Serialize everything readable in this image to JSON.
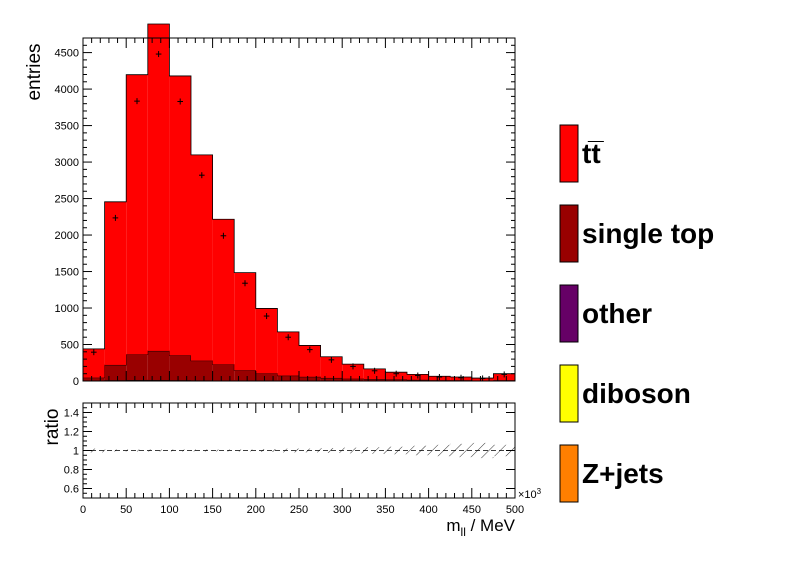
{
  "chart_data": [
    {
      "type": "bar",
      "subtype": "stacked-histogram",
      "ylabel": "entries",
      "xlim": [
        0,
        500
      ],
      "ylim": [
        0,
        4700
      ],
      "bin_edges": [
        0,
        25,
        50,
        75,
        100,
        125,
        150,
        175,
        200,
        225,
        250,
        275,
        300,
        325,
        350,
        375,
        400,
        425,
        450,
        475,
        500
      ],
      "x_ticks": [
        "0",
        "50",
        "100",
        "150",
        "200",
        "250",
        "300",
        "350",
        "400",
        "450",
        "500"
      ],
      "y_ticks": [
        0,
        500,
        1000,
        1500,
        2000,
        2500,
        3000,
        3500,
        4000,
        4500
      ],
      "series": [
        {
          "name": "Z+jets",
          "color": "#ff7f00",
          "values": [
            0,
            0,
            0,
            0,
            0,
            0,
            0,
            0,
            0,
            0,
            0,
            0,
            0,
            0,
            0,
            0,
            0,
            0,
            0,
            0
          ]
        },
        {
          "name": "diboson",
          "color": "#ffff00",
          "values": [
            0,
            0,
            0,
            0,
            0,
            0,
            0,
            0,
            0,
            0,
            0,
            0,
            0,
            0,
            0,
            0,
            0,
            0,
            0,
            0
          ]
        },
        {
          "name": "other",
          "color": "#660066",
          "values": [
            5,
            10,
            12,
            12,
            10,
            8,
            6,
            5,
            4,
            3,
            2,
            2,
            1,
            1,
            1,
            1,
            0,
            0,
            0,
            0
          ]
        },
        {
          "name": "single top",
          "color": "#990000",
          "values": [
            40,
            210,
            350,
            400,
            340,
            270,
            220,
            140,
            100,
            70,
            55,
            40,
            30,
            25,
            20,
            15,
            10,
            10,
            5,
            10
          ]
        },
        {
          "name": "tt̅",
          "color": "#ff0000",
          "values": [
            395,
            2235,
            3835,
            4480,
            3830,
            2820,
            1990,
            1340,
            890,
            600,
            430,
            290,
            200,
            140,
            100,
            75,
            55,
            45,
            35,
            90
          ]
        }
      ],
      "data_points": [
        395,
        2235,
        3835,
        4480,
        3830,
        2820,
        1990,
        1340,
        890,
        600,
        430,
        290,
        200,
        140,
        100,
        75,
        55,
        45,
        35,
        90
      ]
    },
    {
      "type": "line",
      "subtype": "ratio",
      "ylabel": "ratio",
      "xlabel": "m",
      "xlabel_sub": "ll",
      "xlabel_unit": " / MeV",
      "x_exponent": "×10",
      "x_exponent_power": "3",
      "xlim": [
        0,
        500
      ],
      "ylim": [
        0.5,
        1.5
      ],
      "y_ticks": [
        "0.6",
        "0.8",
        "1",
        "1.2",
        "1.4"
      ],
      "ratio_values": [
        1,
        1,
        1,
        1,
        1,
        1,
        1,
        1,
        1,
        1,
        1,
        1,
        1,
        1,
        1,
        1,
        1,
        1,
        1,
        1
      ],
      "uncertainty": [
        0.02,
        0.01,
        0.01,
        0.01,
        0.01,
        0.01,
        0.01,
        0.01,
        0.015,
        0.02,
        0.02,
        0.025,
        0.03,
        0.035,
        0.04,
        0.05,
        0.06,
        0.07,
        0.08,
        0.06
      ]
    }
  ]
}
